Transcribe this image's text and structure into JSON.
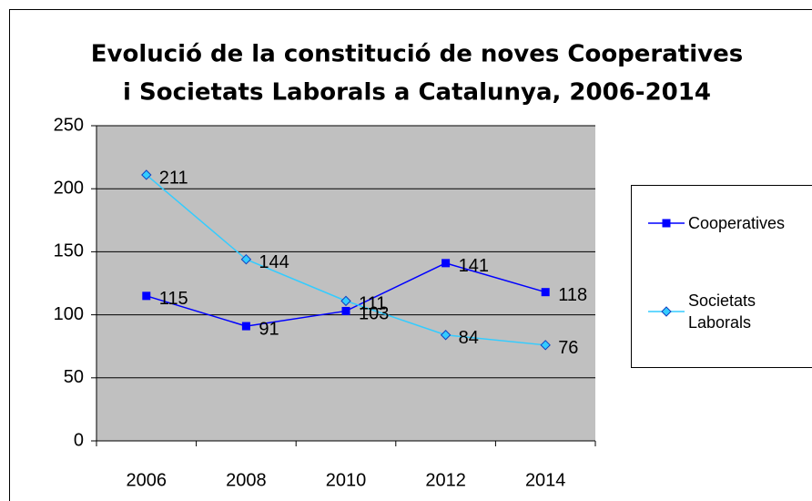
{
  "chart_data": {
    "type": "line",
    "title": [
      "Evolució de la constitució de noves Cooperatives",
      "i Societats Laborals a Catalunya, 2006-2014"
    ],
    "categories": [
      "2006",
      "2008",
      "2010",
      "2012",
      "2014"
    ],
    "series": [
      {
        "name": "Cooperatives",
        "color": "#0000ff",
        "marker": "square",
        "values": [
          115,
          91,
          103,
          141,
          118
        ]
      },
      {
        "name": "Societats Laborals",
        "color": "#33ccff",
        "marker": "diamond",
        "values": [
          211,
          144,
          111,
          84,
          76
        ]
      }
    ],
    "ylim": [
      0,
      250
    ],
    "yticks": [
      0,
      50,
      100,
      150,
      200,
      250
    ],
    "grid": true,
    "legend": "right"
  }
}
